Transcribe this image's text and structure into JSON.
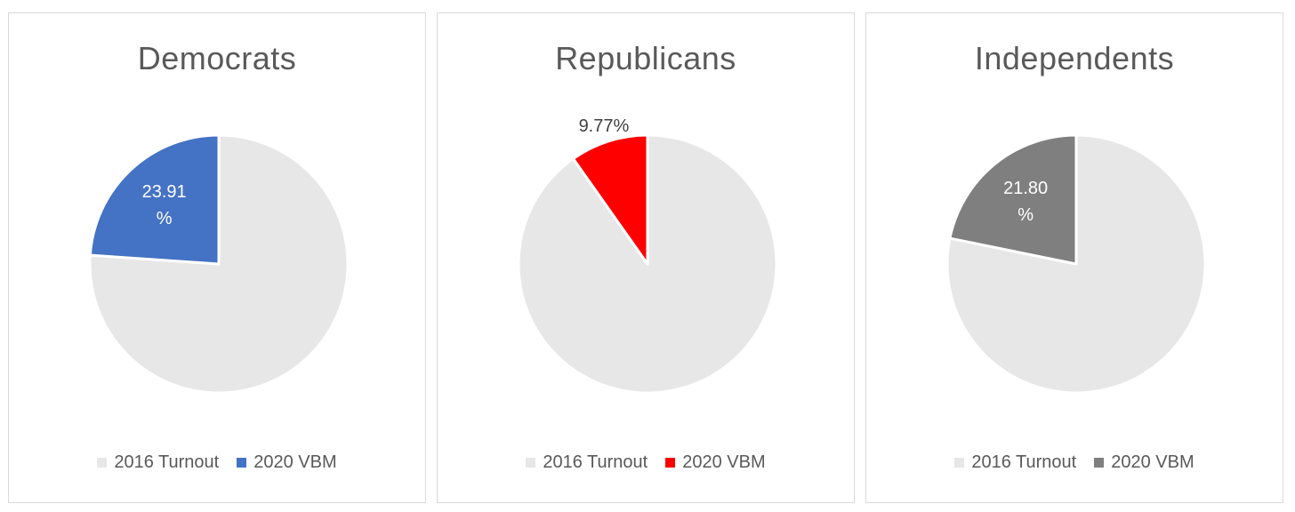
{
  "colors": {
    "turnout_2016": "#e7e7e7",
    "vbm_democrats": "#4472c4",
    "vbm_republicans": "#ff0000",
    "vbm_independents": "#7f7f7f"
  },
  "chart_data": [
    {
      "type": "pie",
      "title": "Democrats",
      "categories": [
        "2016 Turnout",
        "2020 VBM"
      ],
      "values": [
        76.09,
        23.91
      ],
      "data_labels": [
        "",
        "23.91 %"
      ],
      "label_lines": [
        "23.91",
        "%"
      ],
      "colors": [
        "#e7e7e7",
        "#4472c4"
      ],
      "legend": "bottom"
    },
    {
      "type": "pie",
      "title": "Republicans",
      "categories": [
        "2016 Turnout",
        "2020 VBM"
      ],
      "values": [
        90.23,
        9.77
      ],
      "data_labels": [
        "",
        "9.77%"
      ],
      "label_lines": [
        "9.77%"
      ],
      "colors": [
        "#e7e7e7",
        "#ff0000"
      ],
      "legend": "bottom"
    },
    {
      "type": "pie",
      "title": "Independents",
      "categories": [
        "2016 Turnout",
        "2020 VBM"
      ],
      "values": [
        78.2,
        21.8
      ],
      "data_labels": [
        "",
        "21.80 %"
      ],
      "label_lines": [
        "21.80",
        "%"
      ],
      "colors": [
        "#e7e7e7",
        "#7f7f7f"
      ],
      "legend": "bottom"
    }
  ]
}
